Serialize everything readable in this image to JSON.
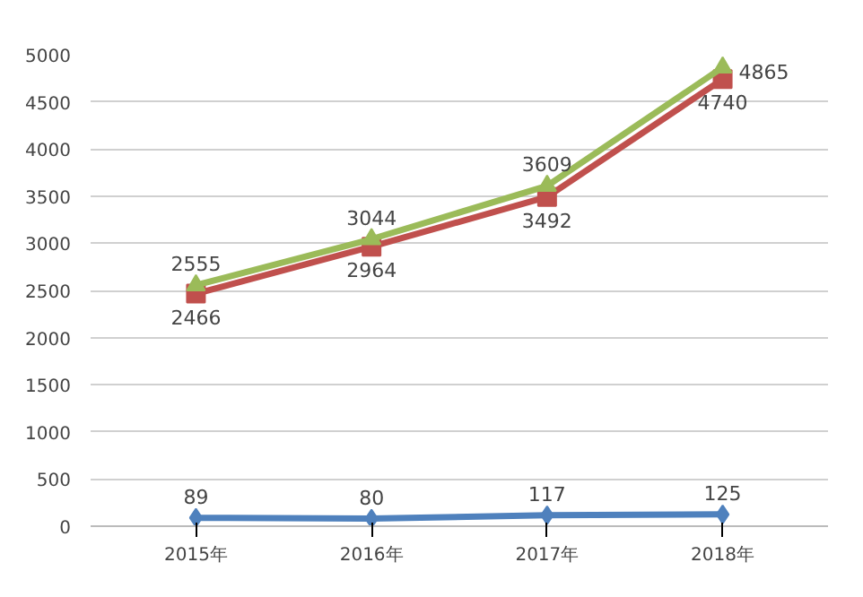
{
  "chart_data": {
    "type": "line",
    "categories": [
      "2015年",
      "2016年",
      "2017年",
      "2018年"
    ],
    "series": [
      {
        "color": "#4f81bd",
        "values": [
          89,
          80,
          117,
          125
        ],
        "marker": "diamond"
      },
      {
        "color": "#c0504d",
        "values": [
          2466,
          2964,
          3492,
          4740
        ],
        "marker": "square"
      },
      {
        "color": "#9bbb59",
        "values": [
          2555,
          3044,
          3609,
          4865
        ],
        "marker": "triangle"
      }
    ],
    "ylim": [
      0,
      5000
    ],
    "yticks": [
      0,
      500,
      1000,
      1500,
      2000,
      2500,
      3000,
      3500,
      4000,
      4500,
      5000
    ],
    "grid": "y",
    "data_labels": true
  }
}
